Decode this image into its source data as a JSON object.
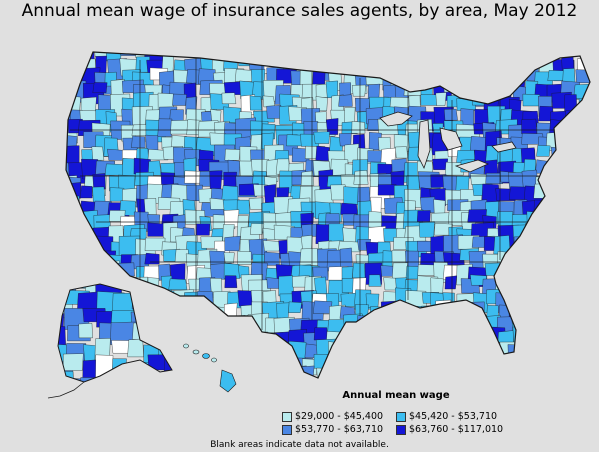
{
  "title": "Annual mean wage of insurance sales agents, by area, May 2012",
  "legend": {
    "title": "Annual mean wage",
    "items": [
      {
        "label": "$29,000 - $45,400",
        "color": "#b9ebee"
      },
      {
        "label": "$45,420 - $53,710",
        "color": "#3cbdf0"
      },
      {
        "label": "$53,770 - $63,710",
        "color": "#4a86e4"
      },
      {
        "label": "$63,760 - $117,010",
        "color": "#1416d6"
      }
    ]
  },
  "footnote": "Blank areas indicate data not available.",
  "colors": {
    "background": "#e0e0e0",
    "boundary": "#1a1a1a",
    "blank": "#ffffff"
  }
}
